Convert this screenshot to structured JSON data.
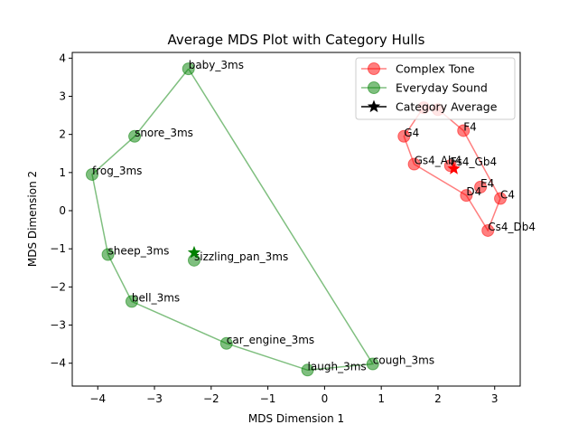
{
  "chart_data": {
    "type": "scatter",
    "title": "Average MDS Plot with Category Hulls",
    "xlabel": "MDS Dimension 1",
    "ylabel": "MDS Dimension 2",
    "xlim": [
      -4.45,
      3.45
    ],
    "ylim": [
      -4.6,
      4.15
    ],
    "xticks": [
      -4,
      -3,
      -2,
      -1,
      0,
      1,
      2,
      3
    ],
    "yticks": [
      -4,
      -3,
      -2,
      -1,
      0,
      1,
      2,
      3,
      4
    ],
    "grid": false,
    "legend_position": "top-right",
    "legend": [
      {
        "label": "Complex Tone",
        "color": "#ff0000",
        "marker": "circle"
      },
      {
        "label": "Everyday Sound",
        "color": "#008000",
        "marker": "circle"
      },
      {
        "label": "Category Average",
        "color": "#000000",
        "marker": "star"
      }
    ],
    "series": [
      {
        "name": "Complex Tone",
        "color": "#ff0000",
        "points": [
          {
            "label": "F4",
            "x": 2.45,
            "y": 2.1
          },
          {
            "label": "G4",
            "x": 1.4,
            "y": 1.95
          },
          {
            "label": "Gs4_Ab4",
            "x": 1.58,
            "y": 1.22
          },
          {
            "label": "Fs4_Gb4",
            "x": 2.22,
            "y": 1.18
          },
          {
            "label": "E4",
            "x": 2.75,
            "y": 0.62
          },
          {
            "label": "D4",
            "x": 2.5,
            "y": 0.4
          },
          {
            "label": "C4",
            "x": 3.1,
            "y": 0.32
          },
          {
            "label": "Cs4_Db4",
            "x": 2.88,
            "y": -0.52
          },
          {
            "label": "",
            "x": 1.75,
            "y": 2.7
          },
          {
            "label": "",
            "x": 2.0,
            "y": 2.65
          }
        ],
        "hull": [
          [
            1.75,
            2.72
          ],
          [
            2.0,
            2.66
          ],
          [
            2.45,
            2.1
          ],
          [
            3.1,
            0.32
          ],
          [
            2.88,
            -0.52
          ],
          [
            2.5,
            0.4
          ],
          [
            1.58,
            1.22
          ],
          [
            1.4,
            1.95
          ],
          [
            1.75,
            2.72
          ]
        ],
        "average": {
          "x": 2.28,
          "y": 1.1
        }
      },
      {
        "name": "Everyday Sound",
        "color": "#008000",
        "points": [
          {
            "label": "baby_3ms",
            "x": -2.4,
            "y": 3.72
          },
          {
            "label": "snore_3ms",
            "x": -3.35,
            "y": 1.95
          },
          {
            "label": "frog_3ms",
            "x": -4.1,
            "y": 0.95
          },
          {
            "label": "sheep_3ms",
            "x": -3.82,
            "y": -1.15
          },
          {
            "label": "sizzling_pan_3ms",
            "x": -2.3,
            "y": -1.3
          },
          {
            "label": "bell_3ms",
            "x": -3.4,
            "y": -2.38
          },
          {
            "label": "car_engine_3ms",
            "x": -1.73,
            "y": -3.48
          },
          {
            "label": "laugh_3ms",
            "x": -0.3,
            "y": -4.18
          },
          {
            "label": "cough_3ms",
            "x": 0.85,
            "y": -4.02
          }
        ],
        "hull": [
          [
            -2.4,
            3.72
          ],
          [
            0.85,
            -4.02
          ],
          [
            -0.3,
            -4.18
          ],
          [
            -1.73,
            -3.48
          ],
          [
            -3.4,
            -2.38
          ],
          [
            -3.82,
            -1.15
          ],
          [
            -4.1,
            0.95
          ],
          [
            -3.35,
            1.95
          ],
          [
            -2.4,
            3.72
          ]
        ],
        "average": {
          "x": -2.3,
          "y": -1.1
        }
      }
    ]
  }
}
